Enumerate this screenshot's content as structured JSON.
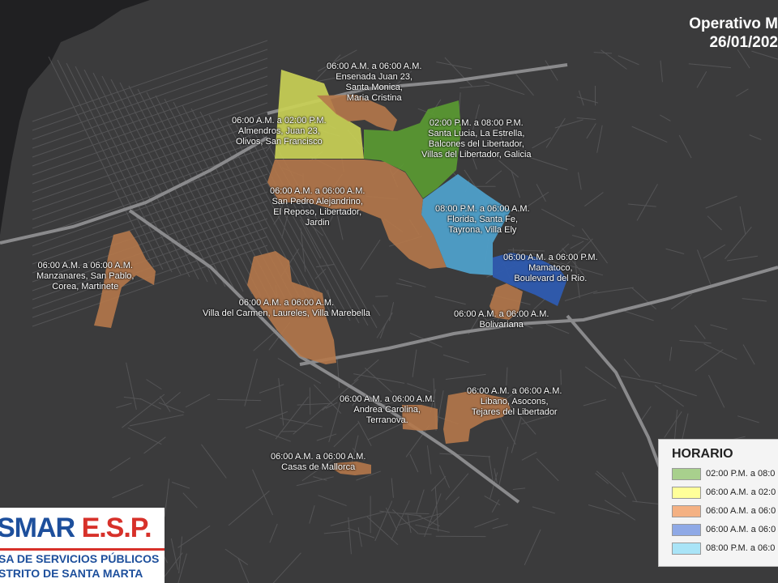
{
  "title": {
    "line1": "Operativo M",
    "line2": "26/01/202"
  },
  "colors": {
    "background": "#3b3b3c",
    "sea": "#202022",
    "street": "#6a6a6c",
    "avenue": "#8a8a8c",
    "green": "#5a9a32",
    "yellow": "#c9d056",
    "orange": "#b5784a",
    "blue": "#2e5bb0",
    "lightblue": "#4e9fc9",
    "white": "#ffffff"
  },
  "legend": {
    "title": "HORARIO",
    "items": [
      {
        "color": "#a8d08d",
        "label": "02:00 P.M. a 08:0"
      },
      {
        "color": "#ffff99",
        "label": "06:00 A.M. a 02:0"
      },
      {
        "color": "#f4b183",
        "label": "06:00 A.M. a 06:0"
      },
      {
        "color": "#8fa9e6",
        "label": "06:00 A.M. a 06:0"
      },
      {
        "color": "#a9e4f7",
        "label": "08:00 P.M. a 06:0"
      }
    ]
  },
  "zones": [
    {
      "id": "ensenada",
      "lines": [
        "06:00 A.M. a 06:00 A.M.",
        "Ensenada Juan 23,",
        "Santa Monica,",
        "Maria Cristina"
      ]
    },
    {
      "id": "almendros",
      "lines": [
        "06:00 A.M. a 02:00 P.M.",
        "Almendros, Juan 23,",
        "Olivos, San Francisco"
      ]
    },
    {
      "id": "santa-lucia",
      "lines": [
        "02:00 P.M. a 08:00 P.M.",
        "Santa Lucia, La Estrella,",
        "Balcones del Libertador,",
        "Villas del Libertador, Galicia"
      ]
    },
    {
      "id": "san-pedro",
      "lines": [
        "06:00 A.M. a 06:00 A.M.",
        "San Pedro Alejandrino,",
        "El Reposo, Libertador,",
        "Jardin"
      ]
    },
    {
      "id": "florida",
      "lines": [
        "08:00 P.M. a 06:00 A.M.",
        "Florida, Santa Fe,",
        "Tayrona, Villa Ely"
      ]
    },
    {
      "id": "manzanares",
      "lines": [
        "06:00 A.M. a 06:00 A.M.",
        "Manzanares, San Pablo,",
        "Corea, Martinete"
      ]
    },
    {
      "id": "mamatoco",
      "lines": [
        "06:00 A.M. a 06:00 P.M.",
        "Mamatoco,",
        "Boulevard del Rio."
      ]
    },
    {
      "id": "villa-del-carmen",
      "lines": [
        "06:00 A.M. a 06:00 A.M.",
        "Villa del Carmen, Laureles, Villa Marebella"
      ]
    },
    {
      "id": "bolivariana",
      "lines": [
        "06:00 A.M. a 06:00 A.M.",
        "Bolivariana"
      ]
    },
    {
      "id": "libano",
      "lines": [
        "06:00 A.M. a 06:00 A.M.",
        "Libano, Asocons,",
        "Tejares del Libertador"
      ]
    },
    {
      "id": "andrea-carolina",
      "lines": [
        "06:00 A.M. a 06:00 A.M.",
        "Andrea Carolina,",
        "Terranova."
      ]
    },
    {
      "id": "casas-de-mallorca",
      "lines": [
        "06:00 A.M. a 06:00 A.M.",
        "Casas de Mallorca"
      ]
    }
  ],
  "logo": {
    "word_blue": "SMAR",
    "word_red": "E.S.P.",
    "line1": "SA DE SERVICIOS PÚBLICOS",
    "line2": "STRITO DE SANTA MARTA"
  }
}
